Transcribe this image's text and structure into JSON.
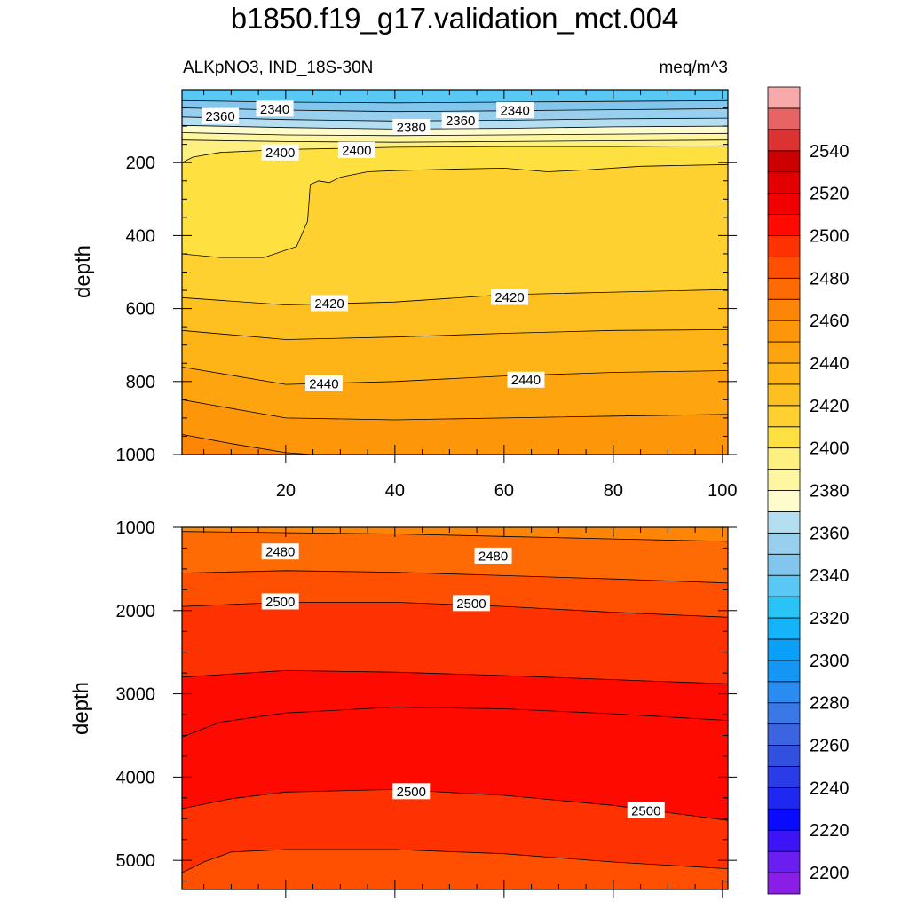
{
  "title": "b1850.f19_g17.validation_mct.004",
  "subtitle_left": "ALKpNO3, IND_18S-30N",
  "subtitle_right": "meq/m^3",
  "chart_data": [
    {
      "type": "heatmap",
      "panel": "upper",
      "ylabel": "depth",
      "xlim": [
        1,
        101
      ],
      "ylim": [
        0,
        1000
      ],
      "y_reversed": true,
      "x_ticks": [
        20,
        40,
        60,
        80,
        100
      ],
      "y_ticks": [
        200,
        400,
        600,
        800,
        1000
      ],
      "contours": [
        {
          "level": 2340,
          "depth": [
            [
              1,
              30
            ],
            [
              20,
              34
            ],
            [
              40,
              36
            ],
            [
              60,
              34
            ],
            [
              80,
              32
            ],
            [
              101,
              30
            ]
          ]
        },
        {
          "level": 2350,
          "depth": [
            [
              1,
              50
            ],
            [
              20,
              56
            ],
            [
              40,
              60
            ],
            [
              60,
              58
            ],
            [
              80,
              55
            ],
            [
              101,
              52
            ]
          ]
        },
        {
          "level": 2360,
          "depth": [
            [
              1,
              75
            ],
            [
              20,
              82
            ],
            [
              40,
              86
            ],
            [
              60,
              84
            ],
            [
              80,
              80
            ],
            [
              101,
              78
            ]
          ]
        },
        {
          "level": 2370,
          "depth": [
            [
              1,
              98
            ],
            [
              20,
              104
            ],
            [
              40,
              108
            ],
            [
              60,
              106
            ],
            [
              80,
              102
            ],
            [
              101,
              100
            ]
          ]
        },
        {
          "level": 2380,
          "depth": [
            [
              1,
              118
            ],
            [
              20,
              124
            ],
            [
              40,
              126
            ],
            [
              60,
              124
            ],
            [
              80,
              122
            ],
            [
              101,
              120
            ]
          ]
        },
        {
          "level": 2390,
          "depth": [
            [
              1,
              138
            ],
            [
              20,
              142
            ],
            [
              40,
              144
            ],
            [
              60,
              142
            ],
            [
              80,
              140
            ],
            [
              101,
              138
            ]
          ]
        },
        {
          "level": 2400,
          "depth": [
            [
              1,
              200
            ],
            [
              3,
              185
            ],
            [
              8,
              172
            ],
            [
              20,
              164
            ],
            [
              40,
              158
            ],
            [
              60,
              156
            ],
            [
              80,
              156
            ],
            [
              101,
              154
            ]
          ]
        },
        {
          "level": 2410,
          "depth": [
            [
              1,
              450
            ],
            [
              8,
              460
            ],
            [
              16,
              460
            ],
            [
              22,
              430
            ],
            [
              24,
              360
            ],
            [
              24.5,
              260
            ],
            [
              26,
              250
            ],
            [
              28,
              255
            ],
            [
              30,
              240
            ],
            [
              35,
              225
            ],
            [
              40,
              222
            ],
            [
              50,
              218
            ],
            [
              60,
              215
            ],
            [
              68,
              225
            ],
            [
              75,
              220
            ],
            [
              85,
              210
            ],
            [
              101,
              205
            ]
          ]
        },
        {
          "level": 2420,
          "depth": [
            [
              1,
              570
            ],
            [
              20,
              590
            ],
            [
              40,
              582
            ],
            [
              60,
              562
            ],
            [
              80,
              555
            ],
            [
              101,
              548
            ]
          ]
        },
        {
          "level": 2430,
          "depth": [
            [
              1,
              660
            ],
            [
              20,
              685
            ],
            [
              40,
              678
            ],
            [
              60,
              668
            ],
            [
              80,
              660
            ],
            [
              101,
              658
            ]
          ]
        },
        {
          "level": 2440,
          "depth": [
            [
              1,
              760
            ],
            [
              20,
              808
            ],
            [
              40,
              800
            ],
            [
              60,
              785
            ],
            [
              80,
              775
            ],
            [
              101,
              770
            ]
          ]
        },
        {
          "level": 2450,
          "depth": [
            [
              1,
              850
            ],
            [
              20,
              900
            ],
            [
              40,
              905
            ],
            [
              60,
              900
            ],
            [
              80,
              895
            ],
            [
              101,
              890
            ]
          ]
        },
        {
          "level": 2460,
          "depth": [
            [
              1,
              945
            ],
            [
              10,
              970
            ],
            [
              20,
              995
            ],
            [
              25,
              1000
            ]
          ]
        }
      ],
      "labels": [
        {
          "text": "2360",
          "x": 8,
          "depth": 72
        },
        {
          "text": "2340",
          "x": 18,
          "depth": 52
        },
        {
          "text": "2380",
          "x": 43,
          "depth": 102
        },
        {
          "text": "2360",
          "x": 52,
          "depth": 84
        },
        {
          "text": "2340",
          "x": 62,
          "depth": 56
        },
        {
          "text": "2400",
          "x": 19,
          "depth": 172
        },
        {
          "text": "2400",
          "x": 33,
          "depth": 165
        },
        {
          "text": "2420",
          "x": 28,
          "depth": 585
        },
        {
          "text": "2420",
          "x": 61,
          "depth": 568
        },
        {
          "text": "2440",
          "x": 27,
          "depth": 805
        },
        {
          "text": "2440",
          "x": 64,
          "depth": 795
        }
      ]
    },
    {
      "type": "heatmap",
      "panel": "lower",
      "ylabel": "depth",
      "xlim": [
        1,
        101
      ],
      "ylim": [
        1000,
        5350
      ],
      "y_reversed": true,
      "y_ticks": [
        1000,
        2000,
        3000,
        4000,
        5000
      ],
      "contours": [
        {
          "level": 2470,
          "depth": [
            [
              1,
              1050
            ],
            [
              40,
              1080
            ],
            [
              60,
              1110
            ],
            [
              80,
              1140
            ],
            [
              101,
              1170
            ]
          ]
        },
        {
          "level": 2480,
          "depth": [
            [
              1,
              1550
            ],
            [
              20,
              1520
            ],
            [
              40,
              1540
            ],
            [
              60,
              1580
            ],
            [
              80,
              1620
            ],
            [
              101,
              1670
            ]
          ]
        },
        {
          "level": 2490,
          "depth": [
            [
              1,
              1950
            ],
            [
              20,
              1900
            ],
            [
              40,
              1900
            ],
            [
              60,
              1950
            ],
            [
              80,
              2020
            ],
            [
              101,
              2080
            ]
          ]
        },
        {
          "level": 2500,
          "depth": [
            [
              1,
              2800
            ],
            [
              20,
              2720
            ],
            [
              40,
              2740
            ],
            [
              60,
              2780
            ],
            [
              80,
              2830
            ],
            [
              101,
              2880
            ]
          ]
        },
        {
          "level": 2510,
          "depth": [
            [
              1,
              3520
            ],
            [
              8,
              3340
            ],
            [
              20,
              3230
            ],
            [
              40,
              3160
            ],
            [
              60,
              3180
            ],
            [
              80,
              3240
            ],
            [
              101,
              3320
            ]
          ]
        },
        {
          "level": 2500,
          "depth": [
            [
              1,
              4380
            ],
            [
              10,
              4260
            ],
            [
              20,
              4180
            ],
            [
              40,
              4150
            ],
            [
              60,
              4220
            ],
            [
              80,
              4340
            ],
            [
              101,
              4520
            ]
          ]
        },
        {
          "level": 2490,
          "depth": [
            [
              1,
              5150
            ],
            [
              5,
              5020
            ],
            [
              10,
              4900
            ],
            [
              20,
              4870
            ],
            [
              40,
              4870
            ],
            [
              60,
              4920
            ],
            [
              80,
              5020
            ],
            [
              101,
              5100
            ]
          ]
        }
      ],
      "labels": [
        {
          "text": "2480",
          "x": 19,
          "depth": 1290
        },
        {
          "text": "2480",
          "x": 58,
          "depth": 1340
        },
        {
          "text": "2500",
          "x": 19,
          "depth": 1890
        },
        {
          "text": "2500",
          "x": 54,
          "depth": 1910
        },
        {
          "text": "2500",
          "x": 43,
          "depth": 4170
        },
        {
          "text": "2500",
          "x": 86,
          "depth": 4400
        }
      ]
    }
  ],
  "colorbar": {
    "levels": [
      2190,
      2200,
      2210,
      2220,
      2230,
      2240,
      2250,
      2260,
      2270,
      2280,
      2290,
      2300,
      2310,
      2320,
      2330,
      2340,
      2350,
      2360,
      2370,
      2380,
      2390,
      2400,
      2410,
      2420,
      2430,
      2440,
      2450,
      2460,
      2470,
      2480,
      2490,
      2500,
      2510,
      2520,
      2530,
      2540,
      2550,
      2560
    ],
    "colors": [
      "#8a1ee6",
      "#6a1ef0",
      "#3c14f5",
      "#0a0aff",
      "#1e28f0",
      "#2a3ce8",
      "#3250e0",
      "#3a64e0",
      "#3a78e8",
      "#2a8cf0",
      "#1496f5",
      "#0aa0fa",
      "#14b4fa",
      "#28c4f8",
      "#5ac8f4",
      "#82c6ee",
      "#98cfee",
      "#b4def2",
      "#fefccc",
      "#fef6a0",
      "#fef080",
      "#fee040",
      "#fed030",
      "#fec020",
      "#feb416",
      "#fea40e",
      "#fe960a",
      "#fe8606",
      "#fe6a04",
      "#fe5000",
      "#fe3200",
      "#fe0a00",
      "#f00000",
      "#e20000",
      "#cc0000",
      "#dc3232",
      "#e86464",
      "#f8aaaa"
    ],
    "tick_labels": [
      "2200",
      "2220",
      "2240",
      "2260",
      "2280",
      "2300",
      "2320",
      "2340",
      "2360",
      "2380",
      "2400",
      "2420",
      "2440",
      "2460",
      "2480",
      "2500",
      "2520",
      "2540"
    ]
  }
}
